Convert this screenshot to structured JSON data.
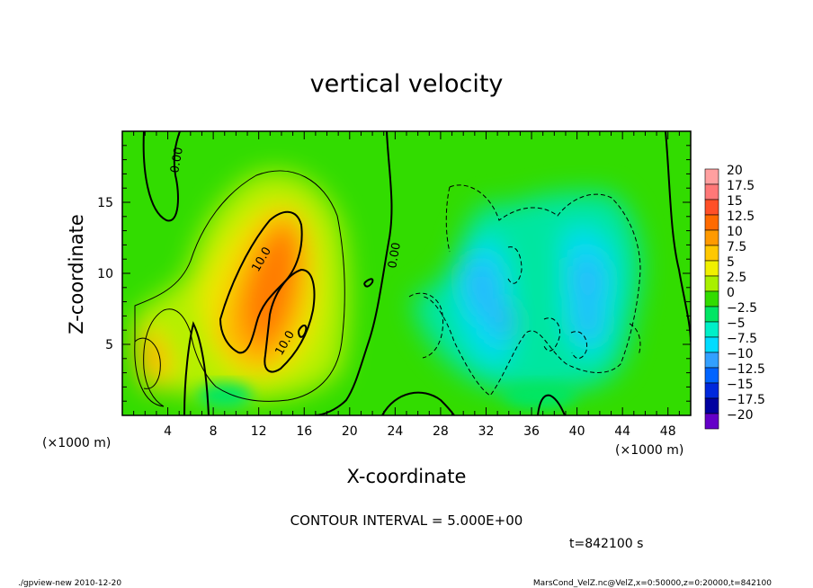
{
  "chart_data": {
    "type": "heatmap",
    "title": "vertical velocity",
    "xlabel": "X-coordinate",
    "ylabel": "Z-coordinate",
    "x_unit_label_left": "(×1000 m)",
    "x_unit_label_right": "(×1000 m)",
    "x_ticks": [
      4,
      8,
      12,
      16,
      20,
      24,
      28,
      32,
      36,
      40,
      44,
      48
    ],
    "y_ticks": [
      5,
      10,
      15
    ],
    "xlim": [
      0,
      50
    ],
    "ylim": [
      0,
      20
    ],
    "colorbar": {
      "labels": [
        "20",
        "17.5",
        "15",
        "12.5",
        "10",
        "7.5",
        "5",
        "2.5",
        "0",
        "−2.5",
        "−5",
        "−7.5",
        "−10",
        "−12.5",
        "−15",
        "−17.5",
        "−20"
      ],
      "colors": [
        "#ffa0a0",
        "#ff7878",
        "#ff5028",
        "#ff6a00",
        "#ff9a00",
        "#ffc800",
        "#f0f000",
        "#a8f000",
        "#32dc00",
        "#00e664",
        "#00f0c8",
        "#00dcff",
        "#32a0ff",
        "#0064ff",
        "#0028dc",
        "#0000a0",
        "#6400c8"
      ]
    },
    "contour_labels": [
      "0.00",
      "0.00",
      "10.0",
      "10.0"
    ],
    "contour_interval": "CONTOUR INTERVAL = 5.000E+00",
    "time": "t=842100 s",
    "footer_left": "./gpview-new  2010-12-20",
    "footer_right": "MarsCond_VelZ.nc@VelZ,x=0:50000,z=0:20000,t=842100"
  }
}
